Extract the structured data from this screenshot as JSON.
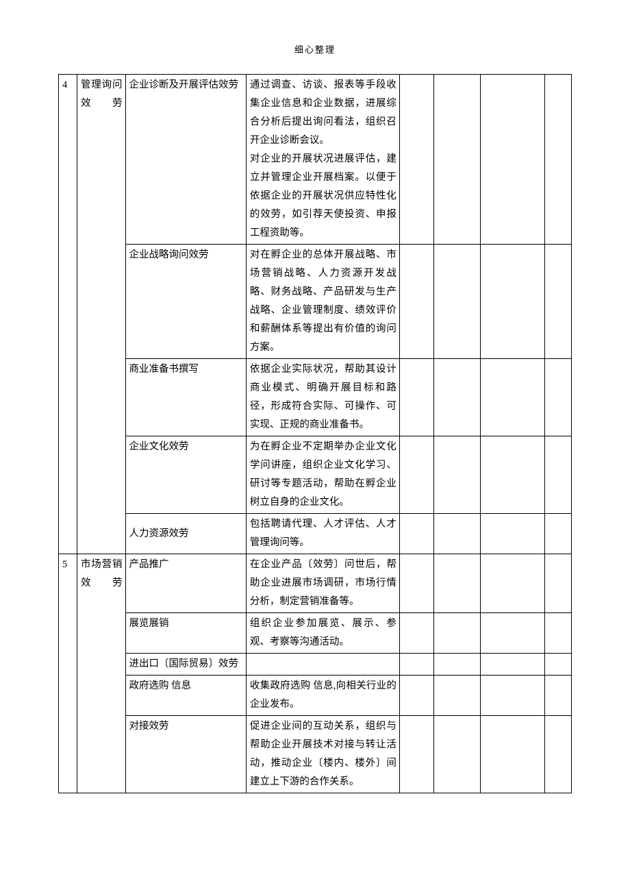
{
  "header": "细心整理",
  "colwidths": [
    "26px",
    "68px",
    "170px",
    "216px",
    "48px",
    "66px",
    "90px",
    "38px"
  ],
  "rows": [
    {
      "type": "g1",
      "g1_no": "4",
      "g1_cat": "管理询问效劳",
      "g1_span": 5,
      "sub": "企业诊断及开展评估效劳",
      "desc": "通过调查、访谈、报表等手段收集企业信息和企业数据，进展综合分析后提出询问看法，组织召开企业诊断会议。\n对企业的开展状况进展评估，建立并管理企业开展档案。以便于依据企业的开展状况供应特性化的效劳，如引荐天使投资、申报工程资助等。"
    },
    {
      "type": "sub",
      "sub": "企业战略询问效劳",
      "desc": "对在孵企业的总体开展战略、市场营销战略、人力资源开发战略、财务战略、产品研发与生产战略、企业管理制度、绩效评价和薪酬体系等提出有价值的询问方案。"
    },
    {
      "type": "sub",
      "sub": "商业准备书撰写",
      "desc": "依据企业实际状况，帮助其设计商业模式、明确开展目标和路径，形成符合实际、可操作、可实现、正规的商业准备书。"
    },
    {
      "type": "sub",
      "sub": "企业文化效劳",
      "desc": "为在孵企业不定期举办企业文化学问讲座，组织企业文化学习、研讨等专题活动，帮助在孵企业树立自身的企业文化。"
    },
    {
      "type": "sub",
      "sub": "人力资源效劳",
      "sub_vc": true,
      "desc": "包括聘请代理、人才评估、人才管理询问等。"
    },
    {
      "type": "g1",
      "g1_no": "5",
      "g1_cat": "市场营销效劳",
      "g1_span": 5,
      "sub": "产品推广",
      "desc": "在企业产品〔效劳〕问世后，帮助企业进展市场调研，市场行情分析，制定营销准备等。"
    },
    {
      "type": "sub",
      "sub": "展览展销",
      "desc": "组织企业参加展览、展示、参观、考察等沟通活动。"
    },
    {
      "type": "sub",
      "sub": "进出口〔国际贸易〕效劳",
      "desc": ""
    },
    {
      "type": "sub",
      "sub": "政府选购 信息",
      "desc": "收集政府选购 信息,向相关行业的企业发布。"
    },
    {
      "type": "sub",
      "sub": "对接效劳",
      "desc": "促进企业间的互动关系，组织与帮助企业开展技术对接与转让活动，推动企业〔楼内、楼外〕间建立上下游的合作关系。"
    }
  ]
}
